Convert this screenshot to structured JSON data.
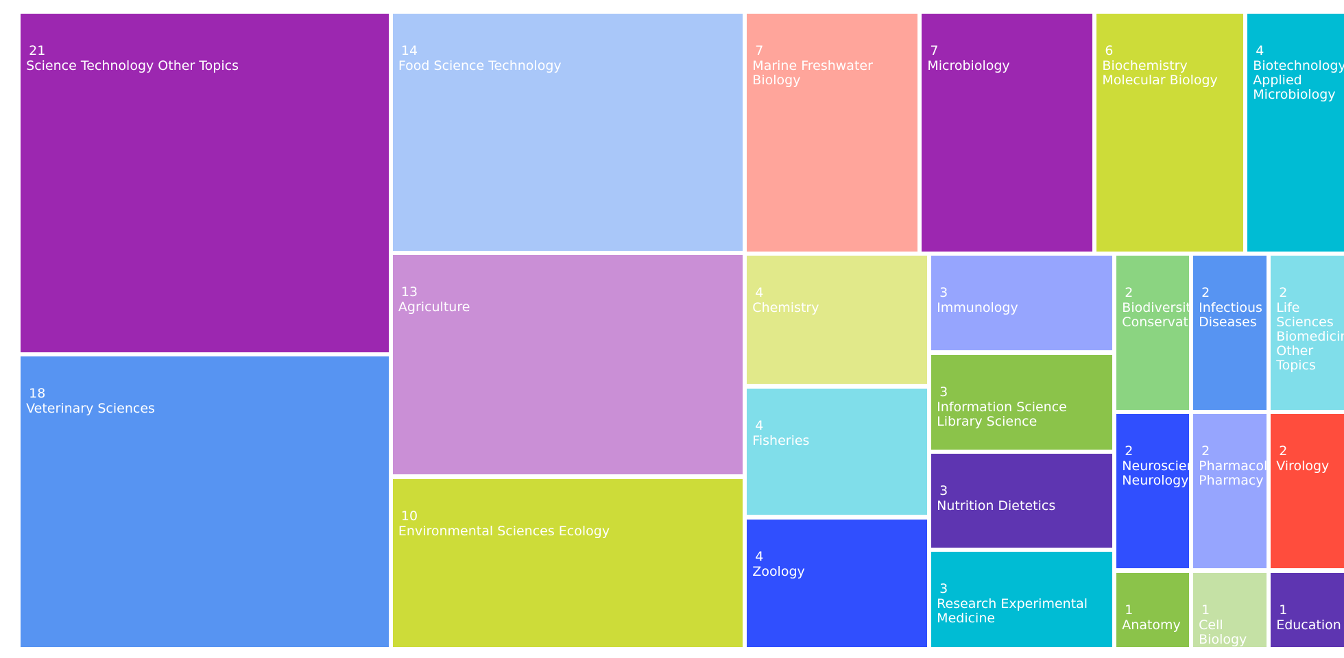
{
  "chart_data": {
    "type": "treemap",
    "categories": [
      "Science Technology Other Topics",
      "Veterinary Sciences",
      "Food Science Technology",
      "Agriculture",
      "Environmental Sciences Ecology",
      "Marine Freshwater Biology",
      "Microbiology",
      "Biochemistry Molecular Biology",
      "Biotechnology Applied Microbiology",
      "Chemistry",
      "Fisheries",
      "Zoology",
      "Immunology",
      "Information Science Library Science",
      "Nutrition Dietetics",
      "Research Experimental Medicine",
      "Biodiversity Conservation",
      "Infectious Diseases",
      "Life Sciences Biomedicine Other Topics",
      "Neurosciences Neurology",
      "Pharmacology Pharmacy",
      "Virology",
      "Anatomy",
      "Cell Biology",
      "Education"
    ],
    "values": [
      21,
      18,
      14,
      13,
      10,
      7,
      7,
      6,
      4,
      4,
      4,
      4,
      3,
      3,
      3,
      3,
      2,
      2,
      2,
      2,
      2,
      2,
      1,
      1,
      1
    ],
    "colors": [
      "#9c27b0",
      "#5794f2",
      "#a9c7f9",
      "#ca8fd6",
      "#cddc39",
      "#ffa59b",
      "#9c27b0",
      "#cddc39",
      "#00bcd4",
      "#e1e98a",
      "#80deea",
      "#304ffe",
      "#96a5fe",
      "#8bc34a",
      "#5e35b1",
      "#00bcd4",
      "#8bd481",
      "#5794f2",
      "#80deea",
      "#304ffe",
      "#96a5fe",
      "#ff4d3d",
      "#8bc34a",
      "#c5e1a5",
      "#5e35b1"
    ]
  }
}
